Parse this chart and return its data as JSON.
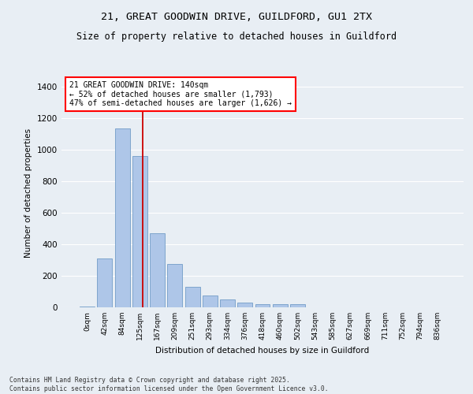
{
  "title1": "21, GREAT GOODWIN DRIVE, GUILDFORD, GU1 2TX",
  "title2": "Size of property relative to detached houses in Guildford",
  "xlabel": "Distribution of detached houses by size in Guildford",
  "ylabel": "Number of detached properties",
  "bar_labels": [
    "0sqm",
    "42sqm",
    "84sqm",
    "125sqm",
    "167sqm",
    "209sqm",
    "251sqm",
    "293sqm",
    "334sqm",
    "376sqm",
    "418sqm",
    "460sqm",
    "502sqm",
    "543sqm",
    "585sqm",
    "627sqm",
    "669sqm",
    "711sqm",
    "752sqm",
    "794sqm",
    "836sqm"
  ],
  "bar_values": [
    5,
    310,
    1135,
    960,
    470,
    275,
    130,
    75,
    48,
    30,
    18,
    20,
    18,
    2,
    2,
    2,
    2,
    2,
    2,
    2,
    2
  ],
  "bar_color": "#aec6e8",
  "bar_edge_color": "#6090c0",
  "vline_color": "#cc0000",
  "vline_x_index": 3.15,
  "annotation_title": "21 GREAT GOODWIN DRIVE: 140sqm",
  "annotation_line1": "← 52% of detached houses are smaller (1,793)",
  "annotation_line2": "47% of semi-detached houses are larger (1,626) →",
  "ylim": [
    0,
    1450
  ],
  "yticks": [
    0,
    200,
    400,
    600,
    800,
    1000,
    1200,
    1400
  ],
  "bg_color": "#e8eef4",
  "grid_color": "#ffffff",
  "footer1": "Contains HM Land Registry data © Crown copyright and database right 2025.",
  "footer2": "Contains public sector information licensed under the Open Government Licence v3.0."
}
